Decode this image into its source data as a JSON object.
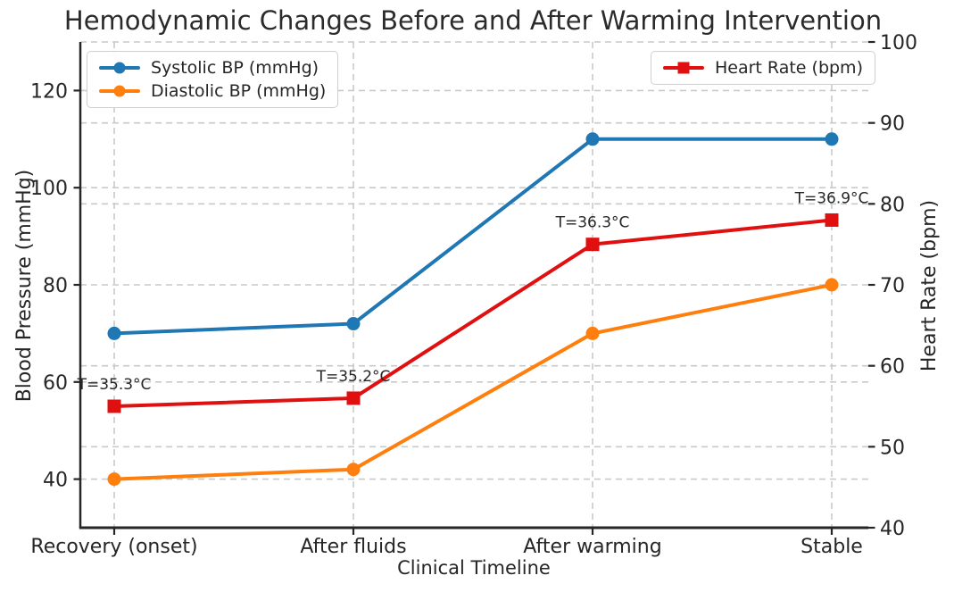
{
  "title": "Hemodynamic Changes Before and After Warming Intervention",
  "chart_data": {
    "type": "line",
    "categories": [
      "Recovery (onset)",
      "After fluids",
      "After warming",
      "Stable"
    ],
    "xlabel": "Clinical Timeline",
    "grid": true,
    "left_axis": {
      "label": "Blood Pressure (mmHg)",
      "ticks": [
        40,
        60,
        80,
        100,
        120
      ],
      "range": [
        30,
        130
      ]
    },
    "right_axis": {
      "label": "Heart Rate (bpm)",
      "ticks": [
        40,
        50,
        60,
        70,
        80,
        90,
        100
      ],
      "range": [
        40,
        100
      ]
    },
    "series": [
      {
        "name": "Systolic BP (mmHg)",
        "axis": "left",
        "color": "#1f77b4",
        "marker": "circle",
        "values": [
          70,
          72,
          110,
          110
        ]
      },
      {
        "name": "Diastolic BP (mmHg)",
        "axis": "left",
        "color": "#ff7f0e",
        "marker": "circle",
        "values": [
          40,
          42,
          70,
          80
        ]
      },
      {
        "name": "Heart Rate (bpm)",
        "axis": "right",
        "color": "#e01010",
        "marker": "square",
        "values": [
          55,
          56,
          75,
          78
        ]
      }
    ],
    "annotation_color": "#2222cc",
    "annotations": [
      {
        "text": "T=35.3°C",
        "point": 0
      },
      {
        "text": "T=35.2°C",
        "point": 1
      },
      {
        "text": "T=36.3°C",
        "point": 2
      },
      {
        "text": "T=36.9°C",
        "point": 3
      }
    ],
    "legend_left_entries": [
      "Systolic BP (mmHg)",
      "Diastolic BP (mmHg)"
    ],
    "legend_right_entries": [
      "Heart Rate (bpm)"
    ],
    "legend_positions": {
      "blood_pressure": "upper left",
      "heart_rate": "upper right"
    }
  }
}
